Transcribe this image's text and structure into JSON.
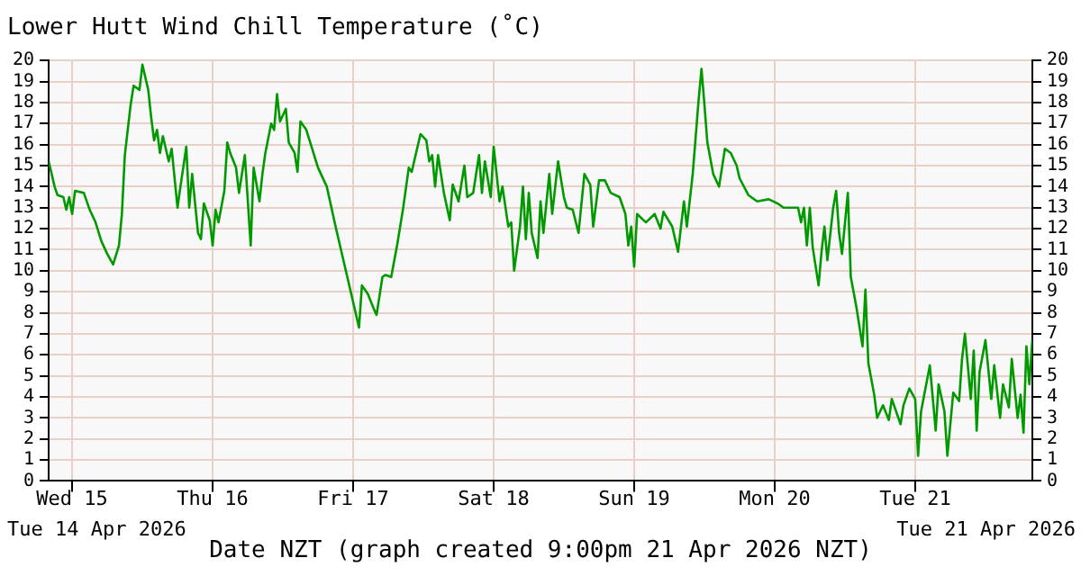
{
  "chart_data": {
    "type": "line",
    "title": "Lower Hutt Wind Chill Temperature (˚C)",
    "xlabel": "Date NZT (graph created 9:00pm 21 Apr 2026 NZT)",
    "annotations": [
      "Tue 14 Apr 2026",
      "Tue 21 Apr 2026"
    ],
    "color": "#009900",
    "grid": true,
    "legend": false,
    "marker": "none",
    "line_style": "solid",
    "xlim": [
      "2026-04-14T20:00",
      "2026-04-21T20:00"
    ],
    "xticks": [
      {
        "value": "2026-04-15T00:00",
        "label": "Wed 15"
      },
      {
        "value": "2026-04-16T00:00",
        "label": "Thu 16"
      },
      {
        "value": "2026-04-17T00:00",
        "label": "Fri 17"
      },
      {
        "value": "2026-04-18T00:00",
        "label": "Sat 18"
      },
      {
        "value": "2026-04-19T00:00",
        "label": "Sun 19"
      },
      {
        "value": "2026-04-20T00:00",
        "label": "Mon 20"
      },
      {
        "value": "2026-04-21T00:00",
        "label": "Tue 21"
      }
    ],
    "ylim": [
      0,
      20
    ],
    "yticks": [
      0,
      1,
      2,
      3,
      4,
      5,
      6,
      7,
      8,
      9,
      10,
      11,
      12,
      13,
      14,
      15,
      16,
      17,
      18,
      19,
      20
    ],
    "y2lim": [
      0,
      20
    ],
    "y2ticks": [
      0,
      1,
      2,
      3,
      4,
      5,
      6,
      7,
      8,
      9,
      10,
      11,
      12,
      13,
      14,
      15,
      16,
      17,
      18,
      19,
      20
    ],
    "x": [
      "2026-04-14T20:00",
      "2026-04-14T21:00",
      "2026-04-14T21:30",
      "2026-04-14T22:30",
      "2026-04-14T23:00",
      "2026-04-14T23:30",
      "2026-04-15T00:00",
      "2026-04-15T00:30",
      "2026-04-15T02:00",
      "2026-04-15T03:00",
      "2026-04-15T04:00",
      "2026-04-15T05:00",
      "2026-04-15T06:00",
      "2026-04-15T07:00",
      "2026-04-15T08:00",
      "2026-04-15T08:30",
      "2026-04-15T09:00",
      "2026-04-15T10:00",
      "2026-04-15T10:30",
      "2026-04-15T11:30",
      "2026-04-15T12:00",
      "2026-04-15T13:00",
      "2026-04-15T13:30",
      "2026-04-15T14:00",
      "2026-04-15T14:30",
      "2026-04-15T15:00",
      "2026-04-15T15:30",
      "2026-04-15T16:30",
      "2026-04-15T17:00",
      "2026-04-15T18:00",
      "2026-04-15T18:30",
      "2026-04-15T19:30",
      "2026-04-15T20:00",
      "2026-04-15T20:30",
      "2026-04-15T21:30",
      "2026-04-15T22:00",
      "2026-04-15T22:30",
      "2026-04-15T23:30",
      "2026-04-16T00:00",
      "2026-04-16T00:30",
      "2026-04-16T01:00",
      "2026-04-16T02:00",
      "2026-04-16T02:30",
      "2026-04-16T03:00",
      "2026-04-16T04:00",
      "2026-04-16T04:30",
      "2026-04-16T05:30",
      "2026-04-16T06:30",
      "2026-04-16T07:00",
      "2026-04-16T08:00",
      "2026-04-16T08:30",
      "2026-04-16T09:00",
      "2026-04-16T10:00",
      "2026-04-16T10:30",
      "2026-04-16T11:00",
      "2026-04-16T11:30",
      "2026-04-16T12:30",
      "2026-04-16T13:00",
      "2026-04-16T14:00",
      "2026-04-16T14:30",
      "2026-04-16T15:00",
      "2026-04-16T16:00",
      "2026-04-16T17:00",
      "2026-04-16T18:00",
      "2026-04-16T19:30",
      "2026-04-16T21:00",
      "2026-04-16T22:30",
      "2026-04-16T23:30",
      "2026-04-17T01:00",
      "2026-04-17T01:30",
      "2026-04-17T02:30",
      "2026-04-17T03:30",
      "2026-04-17T04:00",
      "2026-04-17T05:00",
      "2026-04-17T05:30",
      "2026-04-17T06:30",
      "2026-04-17T07:30",
      "2026-04-17T08:30",
      "2026-04-17T09:30",
      "2026-04-17T10:00",
      "2026-04-17T11:30",
      "2026-04-17T12:30",
      "2026-04-17T13:00",
      "2026-04-17T13:30",
      "2026-04-17T14:00",
      "2026-04-17T14:30",
      "2026-04-17T15:30",
      "2026-04-17T16:30",
      "2026-04-17T17:00",
      "2026-04-17T18:00",
      "2026-04-17T19:00",
      "2026-04-17T19:30",
      "2026-04-17T20:30",
      "2026-04-17T21:30",
      "2026-04-17T22:00",
      "2026-04-17T22:30",
      "2026-04-17T23:30",
      "2026-04-18T00:00",
      "2026-04-18T00:30",
      "2026-04-18T01:00",
      "2026-04-18T01:30",
      "2026-04-18T02:30",
      "2026-04-18T03:00",
      "2026-04-18T03:30",
      "2026-04-18T04:30",
      "2026-04-18T05:00",
      "2026-04-18T05:30",
      "2026-04-18T06:00",
      "2026-04-18T06:30",
      "2026-04-18T07:30",
      "2026-04-18T08:00",
      "2026-04-18T08:30",
      "2026-04-18T09:30",
      "2026-04-18T10:00",
      "2026-04-18T11:00",
      "2026-04-18T12:00",
      "2026-04-18T12:30",
      "2026-04-18T13:30",
      "2026-04-18T14:30",
      "2026-04-18T15:30",
      "2026-04-18T16:30",
      "2026-04-18T17:00",
      "2026-04-18T18:00",
      "2026-04-18T19:00",
      "2026-04-18T20:00",
      "2026-04-18T21:30",
      "2026-04-18T22:30",
      "2026-04-18T23:00",
      "2026-04-18T23:30",
      "2026-04-19T00:00",
      "2026-04-19T00:30",
      "2026-04-19T02:00",
      "2026-04-19T03:30",
      "2026-04-19T04:30",
      "2026-04-19T05:00",
      "2026-04-19T06:30",
      "2026-04-19T07:30",
      "2026-04-19T08:30",
      "2026-04-19T09:00",
      "2026-04-19T10:00",
      "2026-04-19T11:00",
      "2026-04-19T11:30",
      "2026-04-19T12:00",
      "2026-04-19T12:30",
      "2026-04-19T13:30",
      "2026-04-19T14:30",
      "2026-04-19T15:30",
      "2026-04-19T16:30",
      "2026-04-19T17:30",
      "2026-04-19T18:00",
      "2026-04-19T19:30",
      "2026-04-19T21:00",
      "2026-04-19T23:00",
      "2026-04-20T00:30",
      "2026-04-20T01:30",
      "2026-04-20T04:00",
      "2026-04-20T04:30",
      "2026-04-20T05:00",
      "2026-04-20T05:30",
      "2026-04-20T06:00",
      "2026-04-20T06:30",
      "2026-04-20T07:30",
      "2026-04-20T08:00",
      "2026-04-20T08:30",
      "2026-04-20T09:00",
      "2026-04-20T10:00",
      "2026-04-20T10:30",
      "2026-04-20T11:00",
      "2026-04-20T11:30",
      "2026-04-20T12:30",
      "2026-04-20T13:00",
      "2026-04-20T14:00",
      "2026-04-20T15:00",
      "2026-04-20T15:30",
      "2026-04-20T16:00",
      "2026-04-20T17:00",
      "2026-04-20T17:30",
      "2026-04-20T18:30",
      "2026-04-20T19:30",
      "2026-04-20T20:00",
      "2026-04-20T21:30",
      "2026-04-20T22:00",
      "2026-04-20T23:00",
      "2026-04-21T00:00",
      "2026-04-21T00:30",
      "2026-04-21T01:00",
      "2026-04-21T02:30",
      "2026-04-21T03:30",
      "2026-04-21T04:00",
      "2026-04-21T05:00",
      "2026-04-21T05:30",
      "2026-04-21T06:30",
      "2026-04-21T07:30",
      "2026-04-21T08:00",
      "2026-04-21T08:30",
      "2026-04-21T09:30",
      "2026-04-21T10:00",
      "2026-04-21T10:30",
      "2026-04-21T11:00",
      "2026-04-21T12:00",
      "2026-04-21T13:00",
      "2026-04-21T13:30",
      "2026-04-21T14:30",
      "2026-04-21T15:00",
      "2026-04-21T16:00",
      "2026-04-21T16:30",
      "2026-04-21T17:30",
      "2026-04-21T18:00",
      "2026-04-21T18:30",
      "2026-04-21T19:00",
      "2026-04-21T19:30",
      "2026-04-21T20:00"
    ],
    "values": [
      15.2,
      14.0,
      13.6,
      13.5,
      12.9,
      13.5,
      12.7,
      13.8,
      13.7,
      12.9,
      12.3,
      11.4,
      10.8,
      10.3,
      11.2,
      12.7,
      15.5,
      17.9,
      18.8,
      18.6,
      19.8,
      18.6,
      17.3,
      16.2,
      16.7,
      15.6,
      16.4,
      15.2,
      15.8,
      13.0,
      14.0,
      15.9,
      13.0,
      14.6,
      11.8,
      11.5,
      13.2,
      12.4,
      11.2,
      12.9,
      12.3,
      13.8,
      16.1,
      15.6,
      14.9,
      13.7,
      15.5,
      11.2,
      14.9,
      13.3,
      14.6,
      15.6,
      17.0,
      16.7,
      18.4,
      17.1,
      17.7,
      16.1,
      15.6,
      14.7,
      17.1,
      16.7,
      15.8,
      14.9,
      14.0,
      12.1,
      10.3,
      9.1,
      7.3,
      9.3,
      8.9,
      8.2,
      7.9,
      9.7,
      9.8,
      9.7,
      11.2,
      12.9,
      14.9,
      14.7,
      16.5,
      16.2,
      15.2,
      15.5,
      14.0,
      15.5,
      13.7,
      12.4,
      14.1,
      13.3,
      15.0,
      13.5,
      13.7,
      15.5,
      13.7,
      15.2,
      13.5,
      15.9,
      14.6,
      13.3,
      14.0,
      12.1,
      12.3,
      10.0,
      12.1,
      14.0,
      11.5,
      13.7,
      11.8,
      10.6,
      13.3,
      11.8,
      14.6,
      12.7,
      15.2,
      13.5,
      13.0,
      12.9,
      11.8,
      14.6,
      14.1,
      12.1,
      14.3,
      14.3,
      13.7,
      13.5,
      12.7,
      11.2,
      12.1,
      10.2,
      12.7,
      12.3,
      12.7,
      12.0,
      12.8,
      12.1,
      10.9,
      13.3,
      12.1,
      14.6,
      18.1,
      19.6,
      17.9,
      16.1,
      14.6,
      14.0,
      15.8,
      15.6,
      15.0,
      14.4,
      13.6,
      13.3,
      13.4,
      13.2,
      13.0,
      13.0,
      12.3,
      13.0,
      11.2,
      13.0,
      11.1,
      9.3,
      10.9,
      12.1,
      10.5,
      13.0,
      13.8,
      11.8,
      10.8,
      13.7,
      9.7,
      8.2,
      6.4,
      9.1,
      5.6,
      4.1,
      3.0,
      3.6,
      2.9,
      3.9,
      2.7,
      3.6,
      4.4,
      3.9,
      1.2,
      3.3,
      5.5,
      2.4,
      4.6,
      3.3,
      1.2,
      4.2,
      3.8,
      5.8,
      7.0,
      3.9,
      6.2,
      2.4,
      5.2,
      6.7,
      3.9,
      5.5,
      3.0,
      4.6,
      3.5,
      5.8,
      3.0,
      4.1,
      2.3,
      6.4,
      4.6,
      6.7
    ]
  }
}
